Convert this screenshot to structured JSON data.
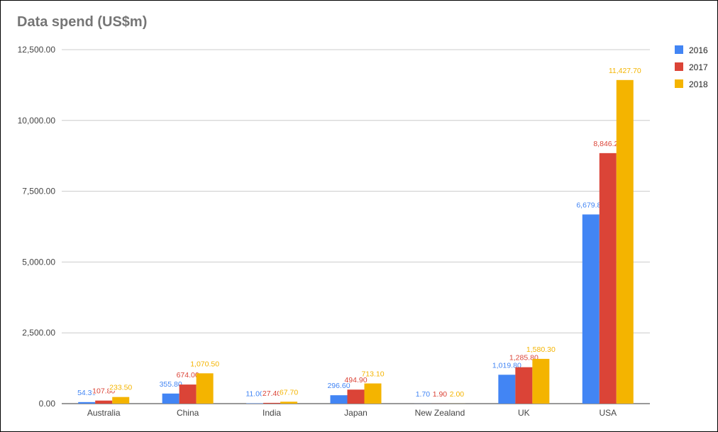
{
  "chart_data": {
    "type": "bar",
    "title": "Data spend (US$m)",
    "xlabel": "",
    "ylabel": "",
    "ylim": [
      0,
      12500
    ],
    "yticks": [
      "0.00",
      "2,500.00",
      "5,000.00",
      "7,500.00",
      "10,000.00",
      "12,500.00"
    ],
    "ytick_values": [
      0,
      2500,
      5000,
      7500,
      10000,
      12500
    ],
    "grid": true,
    "legend_position": "right",
    "categories": [
      "Australia",
      "China",
      "India",
      "Japan",
      "New Zealand",
      "UK",
      "USA"
    ],
    "series": [
      {
        "name": "2016",
        "color": "#4285f4",
        "values": [
          54.3,
          355.8,
          11.0,
          296.6,
          1.7,
          1019.8,
          6679.8
        ],
        "labels": [
          "54.30",
          "355.80",
          "11.00",
          "296.60",
          "1.70",
          "1,019.80",
          "6,679.80"
        ]
      },
      {
        "name": "2017",
        "color": "#db4437",
        "values": [
          107.8,
          674.0,
          27.4,
          494.9,
          1.9,
          1285.8,
          8846.2
        ],
        "labels": [
          "107.80",
          "674.00",
          "27.40",
          "494.90",
          "1.90",
          "1,285.80",
          "8,846.20"
        ]
      },
      {
        "name": "2018",
        "color": "#f4b400",
        "values": [
          233.5,
          1070.5,
          67.7,
          713.1,
          2.0,
          1580.3,
          11427.7
        ],
        "labels": [
          "233.50",
          "1,070.50",
          "67.70",
          "713.10",
          "2.00",
          "1,580.30",
          "11,427.70"
        ]
      }
    ]
  }
}
